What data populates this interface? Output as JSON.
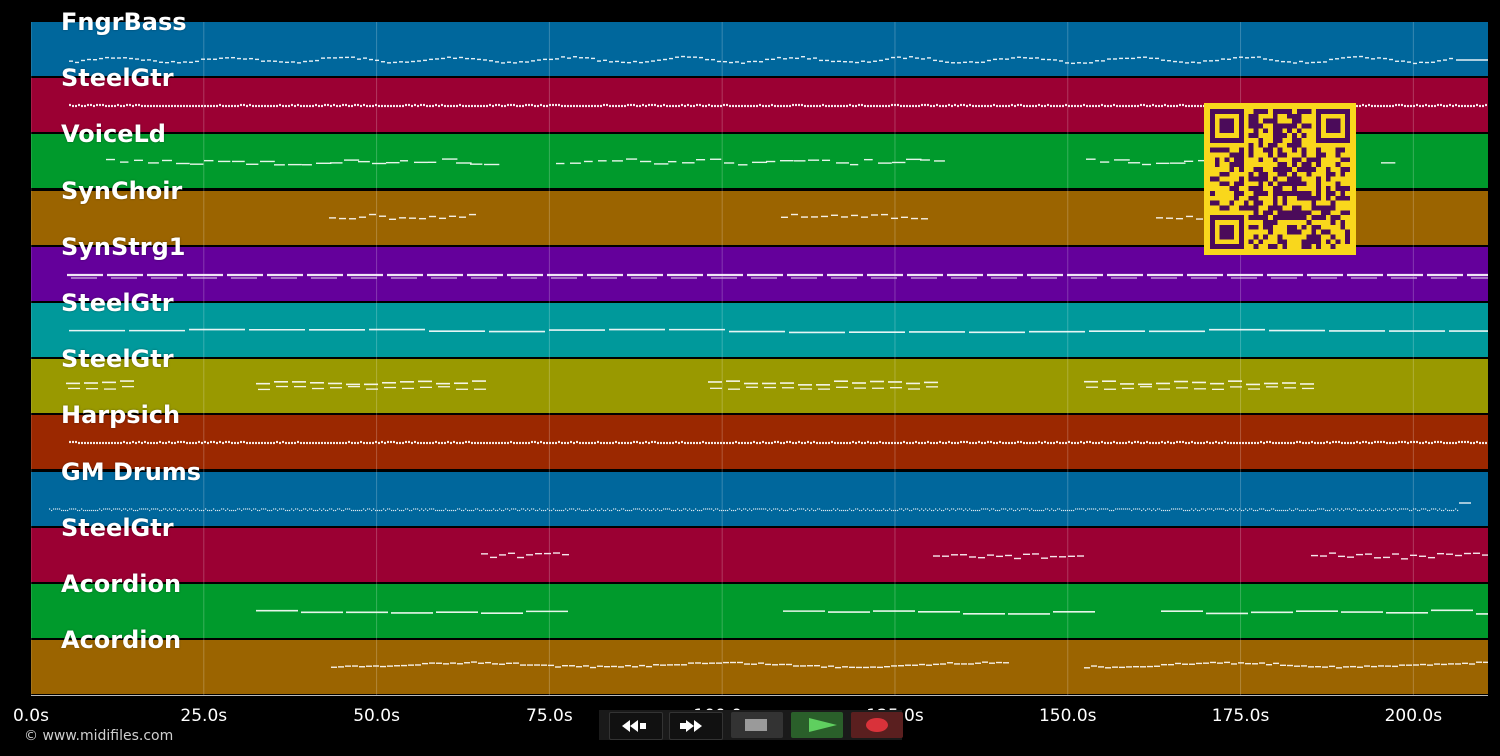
{
  "tracks": [
    {
      "label": "FngrBass",
      "color": "#00679c",
      "pattern": "dense-wave"
    },
    {
      "label": "SteelGtr",
      "color": "#9b0033",
      "pattern": "dense-line"
    },
    {
      "label": "VoiceLd",
      "color": "#009a2c",
      "pattern": "phrases"
    },
    {
      "label": "SynChoir",
      "color": "#9b6400",
      "pattern": "short-phrases"
    },
    {
      "label": "SynStrg1",
      "color": "#64009b",
      "pattern": "sustained"
    },
    {
      "label": "SteelGtr",
      "color": "#00999b",
      "pattern": "sustained-thin"
    },
    {
      "label": "SteelGtr",
      "color": "#999900",
      "pattern": "blocks"
    },
    {
      "label": "Harpsich",
      "color": "#9b2800",
      "pattern": "dense-line"
    },
    {
      "label": "GM Drums",
      "color": "#00679c",
      "pattern": "drums"
    },
    {
      "label": "SteelGtr",
      "color": "#9b0033",
      "pattern": "sparse"
    },
    {
      "label": "Acordion",
      "color": "#009a2c",
      "pattern": "long-lines"
    },
    {
      "label": "Acordion",
      "color": "#9b6400",
      "pattern": "melody"
    }
  ],
  "time_axis": {
    "ticks": [
      "0.0s",
      "25.0s",
      "50.0s",
      "75.0s",
      "100.0s",
      "125.0s",
      "150.0s",
      "175.0s",
      "200.0s"
    ],
    "values": [
      0,
      25,
      50,
      75,
      100,
      125,
      150,
      175,
      200
    ],
    "max_seconds": 210.8
  },
  "credit": "© www.midifiles.com",
  "qr": {
    "fg": "#4b0b5a",
    "bg": "#f9d71c"
  },
  "transport": {
    "buttons": [
      {
        "name": "rewind-button",
        "icon": "rewind-icon"
      },
      {
        "name": "fast-forward-button",
        "icon": "fast-forward-icon"
      },
      {
        "name": "stop-button",
        "icon": "stop-icon"
      },
      {
        "name": "play-button",
        "icon": "play-icon"
      },
      {
        "name": "record-button",
        "icon": "record-icon"
      }
    ]
  }
}
